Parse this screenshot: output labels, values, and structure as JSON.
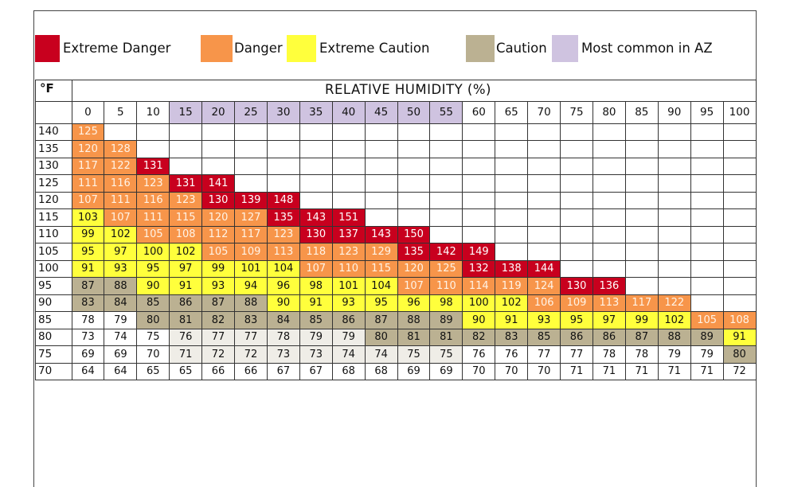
{
  "colors": {
    "extreme_danger": "#c8001e",
    "danger": "#f7954a",
    "extreme_caution": "#ffff3c",
    "caution": "#bbb192",
    "common": "#cfc3e0",
    "light_caution": "#efede7",
    "white": "#ffffff"
  },
  "legend": [
    {
      "label": "Extreme Danger",
      "color_key": "extreme_danger"
    },
    {
      "label": "Danger",
      "color_key": "danger"
    },
    {
      "label": "Extreme Caution",
      "color_key": "extreme_caution"
    },
    {
      "label": "Caution",
      "color_key": "caution"
    },
    {
      "label": "Most common in AZ",
      "color_key": "common"
    }
  ],
  "chart_data": {
    "type": "table",
    "corner_label": "°F",
    "column_header_title": "RELATIVE HUMIDITY (%)",
    "humidity": [
      "0",
      "5",
      "10",
      "15",
      "20",
      "25",
      "30",
      "35",
      "40",
      "45",
      "50",
      "55",
      "60",
      "65",
      "70",
      "75",
      "80",
      "85",
      "90",
      "95",
      "100"
    ],
    "most_common_humidity": [
      "15",
      "20",
      "25",
      "30",
      "35",
      "40",
      "45",
      "50",
      "55"
    ],
    "temperatures": [
      "140",
      "135",
      "130",
      "125",
      "120",
      "115",
      "110",
      "105",
      "100",
      "95",
      "90",
      "85",
      "80",
      "75",
      "70"
    ],
    "heat_index": [
      [
        "125",
        "",
        "",
        "",
        "",
        "",
        "",
        "",
        "",
        "",
        "",
        "",
        "",
        "",
        "",
        "",
        "",
        "",
        "",
        "",
        ""
      ],
      [
        "120",
        "128",
        "",
        "",
        "",
        "",
        "",
        "",
        "",
        "",
        "",
        "",
        "",
        "",
        "",
        "",
        "",
        "",
        "",
        "",
        ""
      ],
      [
        "117",
        "122",
        "131",
        "",
        "",
        "",
        "",
        "",
        "",
        "",
        "",
        "",
        "",
        "",
        "",
        "",
        "",
        "",
        "",
        "",
        ""
      ],
      [
        "111",
        "116",
        "123",
        "131",
        "141",
        "",
        "",
        "",
        "",
        "",
        "",
        "",
        "",
        "",
        "",
        "",
        "",
        "",
        "",
        "",
        ""
      ],
      [
        "107",
        "111",
        "116",
        "123",
        "130",
        "139",
        "148",
        "",
        "",
        "",
        "",
        "",
        "",
        "",
        "",
        "",
        "",
        "",
        "",
        "",
        ""
      ],
      [
        "103",
        "107",
        "111",
        "115",
        "120",
        "127",
        "135",
        "143",
        "151",
        "",
        "",
        "",
        "",
        "",
        "",
        "",
        "",
        "",
        "",
        "",
        ""
      ],
      [
        "99",
        "102",
        "105",
        "108",
        "112",
        "117",
        "123",
        "130",
        "137",
        "143",
        "150",
        "",
        "",
        "",
        "",
        "",
        "",
        "",
        "",
        "",
        ""
      ],
      [
        "95",
        "97",
        "100",
        "102",
        "105",
        "109",
        "113",
        "118",
        "123",
        "129",
        "135",
        "142",
        "149",
        "",
        "",
        "",
        "",
        "",
        "",
        "",
        ""
      ],
      [
        "91",
        "93",
        "95",
        "97",
        "99",
        "101",
        "104",
        "107",
        "110",
        "115",
        "120",
        "125",
        "132",
        "138",
        "144",
        "",
        "",
        "",
        "",
        "",
        ""
      ],
      [
        "87",
        "88",
        "90",
        "91",
        "93",
        "94",
        "96",
        "98",
        "101",
        "104",
        "107",
        "110",
        "114",
        "119",
        "124",
        "130",
        "136",
        "",
        "",
        "",
        ""
      ],
      [
        "83",
        "84",
        "85",
        "86",
        "87",
        "88",
        "90",
        "91",
        "93",
        "95",
        "96",
        "98",
        "100",
        "102",
        "106",
        "109",
        "113",
        "117",
        "122",
        "",
        ""
      ],
      [
        "78",
        "79",
        "80",
        "81",
        "82",
        "83",
        "84",
        "85",
        "86",
        "87",
        "88",
        "89",
        "90",
        "91",
        "93",
        "95",
        "97",
        "99",
        "102",
        "105",
        "108"
      ],
      [
        "73",
        "74",
        "75",
        "76",
        "77",
        "77",
        "78",
        "79",
        "79",
        "80",
        "81",
        "81",
        "82",
        "83",
        "85",
        "86",
        "86",
        "87",
        "88",
        "89",
        "91"
      ],
      [
        "69",
        "69",
        "70",
        "71",
        "72",
        "72",
        "73",
        "73",
        "74",
        "74",
        "75",
        "75",
        "76",
        "76",
        "77",
        "77",
        "78",
        "78",
        "79",
        "79",
        "80"
      ],
      [
        "64",
        "64",
        "65",
        "65",
        "66",
        "66",
        "67",
        "67",
        "68",
        "68",
        "69",
        "69",
        "70",
        "70",
        "70",
        "71",
        "71",
        "71",
        "71",
        "71",
        "72"
      ]
    ],
    "categories": [
      [
        "D",
        "",
        "",
        "",
        "",
        "",
        "",
        "",
        "",
        "",
        "",
        "",
        "",
        "",
        "",
        "",
        "",
        "",
        "",
        "",
        ""
      ],
      [
        "D",
        "D",
        "",
        "",
        "",
        "",
        "",
        "",
        "",
        "",
        "",
        "",
        "",
        "",
        "",
        "",
        "",
        "",
        "",
        "",
        ""
      ],
      [
        "D",
        "D",
        "X",
        "",
        "",
        "",
        "",
        "",
        "",
        "",
        "",
        "",
        "",
        "",
        "",
        "",
        "",
        "",
        "",
        "",
        ""
      ],
      [
        "D",
        "D",
        "D",
        "X",
        "X",
        "",
        "",
        "",
        "",
        "",
        "",
        "",
        "",
        "",
        "",
        "",
        "",
        "",
        "",
        "",
        ""
      ],
      [
        "D",
        "D",
        "D",
        "D",
        "X",
        "X",
        "X",
        "",
        "",
        "",
        "",
        "",
        "",
        "",
        "",
        "",
        "",
        "",
        "",
        "",
        ""
      ],
      [
        "E",
        "D",
        "D",
        "D",
        "D",
        "D",
        "X",
        "X",
        "X",
        "",
        "",
        "",
        "",
        "",
        "",
        "",
        "",
        "",
        "",
        "",
        ""
      ],
      [
        "E",
        "E",
        "D",
        "D",
        "D",
        "D",
        "D",
        "X",
        "X",
        "X",
        "X",
        "",
        "",
        "",
        "",
        "",
        "",
        "",
        "",
        "",
        ""
      ],
      [
        "E",
        "E",
        "E",
        "E",
        "D",
        "D",
        "D",
        "D",
        "D",
        "D",
        "X",
        "X",
        "X",
        "",
        "",
        "",
        "",
        "",
        "",
        "",
        ""
      ],
      [
        "E",
        "E",
        "E",
        "E",
        "E",
        "E",
        "E",
        "D",
        "D",
        "D",
        "D",
        "D",
        "X",
        "X",
        "X",
        "",
        "",
        "",
        "",
        "",
        ""
      ],
      [
        "C",
        "C",
        "E",
        "E",
        "E",
        "E",
        "E",
        "E",
        "E",
        "E",
        "D",
        "D",
        "D",
        "D",
        "D",
        "X",
        "X",
        "",
        "",
        "",
        ""
      ],
      [
        "C",
        "C",
        "C",
        "C",
        "C",
        "C",
        "E",
        "E",
        "E",
        "E",
        "E",
        "E",
        "E",
        "E",
        "D",
        "D",
        "D",
        "D",
        "D",
        "",
        ""
      ],
      [
        "W",
        "W",
        "C",
        "C",
        "C",
        "C",
        "C",
        "C",
        "C",
        "C",
        "C",
        "C",
        "E",
        "E",
        "E",
        "E",
        "E",
        "E",
        "E",
        "D",
        "D"
      ],
      [
        "W",
        "W",
        "W",
        "L",
        "L",
        "L",
        "L",
        "L",
        "L",
        "C",
        "C",
        "C",
        "C",
        "C",
        "C",
        "C",
        "C",
        "C",
        "C",
        "C",
        "E"
      ],
      [
        "W",
        "W",
        "W",
        "L",
        "L",
        "L",
        "L",
        "L",
        "L",
        "L",
        "L",
        "L",
        "W",
        "W",
        "W",
        "W",
        "W",
        "W",
        "W",
        "W",
        "C"
      ],
      [
        "W",
        "W",
        "W",
        "W",
        "W",
        "W",
        "W",
        "W",
        "W",
        "W",
        "W",
        "W",
        "W",
        "W",
        "W",
        "W",
        "W",
        "W",
        "W",
        "W",
        "W"
      ]
    ]
  }
}
